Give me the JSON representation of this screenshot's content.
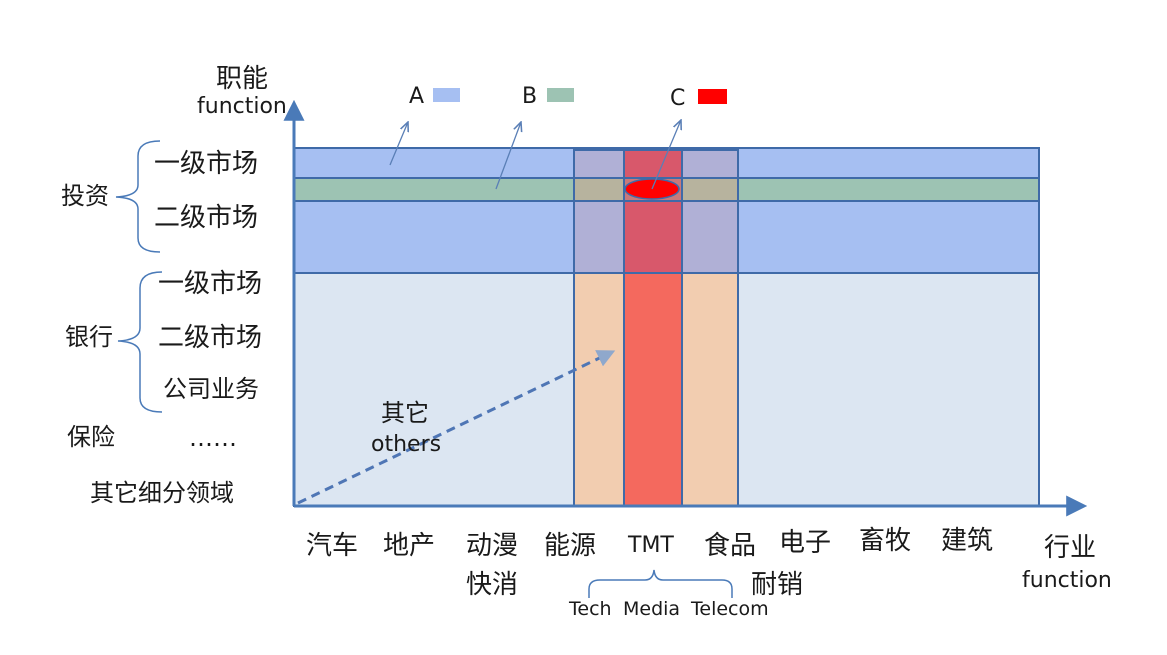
{
  "y_axis": {
    "title_cn": "职能",
    "title_en": "function"
  },
  "x_axis": {
    "title_cn": "行业",
    "title_en": "function"
  },
  "legend": [
    {
      "label": "A",
      "color": "#a6bff2"
    },
    {
      "label": "B",
      "color": "#9dc3b3"
    },
    {
      "label": "C",
      "color": "#ff0000"
    }
  ],
  "functions": {
    "investment": {
      "label": "投资",
      "items": [
        "一级市场",
        "二级市场"
      ]
    },
    "bank": {
      "label": "银行",
      "items": [
        "一级市场",
        "二级市场",
        "公司业务"
      ]
    },
    "insurance": {
      "label": "保险",
      "ellipsis": "……"
    },
    "other_fields": "其它细分领域"
  },
  "industries": {
    "auto": "汽车",
    "real_estate": "地产",
    "anime": "动漫",
    "fmcg": "快消",
    "energy": "能源",
    "tmt": "TMT",
    "food": "食品",
    "electronics": "电子",
    "durables": "耐销",
    "livestock": "畜牧",
    "construction": "建筑"
  },
  "tmt_breakdown": [
    "Tech",
    "Media",
    "Telecom"
  ],
  "others_note": {
    "cn": "其它",
    "en": "others"
  },
  "colors": {
    "axis": "#4a7ab8",
    "region_light": "#dce6f2",
    "region_invest": "#a6bff2",
    "region_b_band": "#9dc3b3",
    "col_peach": "#f2cdb0",
    "col_purple": "#b0b0d6",
    "col_tmt_lower": "#f4695e",
    "col_tmt_upper": "#d8586b",
    "c_marker": "#ff0000"
  }
}
